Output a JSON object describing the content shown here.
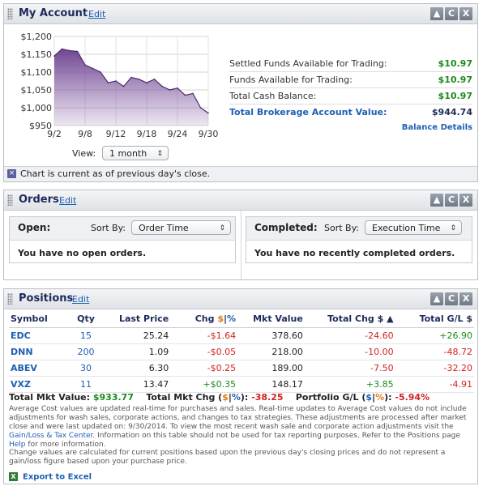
{
  "account": {
    "title": "My Account",
    "edit": "Edit",
    "controls": [
      "▲",
      "C",
      "X"
    ],
    "rows": [
      {
        "label": "Settled Funds Available for Trading:",
        "value": "$10.97"
      },
      {
        "label": "Funds Available for Trading:",
        "value": "$10.97"
      },
      {
        "label": "Total Cash Balance:",
        "value": "$10.97"
      }
    ],
    "total_label": "Total Brokerage Account Value:",
    "total_value": "$944.74",
    "balance_details": "Balance Details",
    "view_label": "View:",
    "view_value": "1 month",
    "footnote": "Chart is current as of previous day's close."
  },
  "chart_data": {
    "type": "area",
    "x": [
      "9/2",
      "9/3",
      "9/4",
      "9/5",
      "9/8",
      "9/9",
      "9/10",
      "9/11",
      "9/12",
      "9/15",
      "9/16",
      "9/17",
      "9/18",
      "9/19",
      "9/22",
      "9/23",
      "9/24",
      "9/25",
      "9/26",
      "9/29",
      "9/30"
    ],
    "values": [
      1145,
      1165,
      1160,
      1158,
      1120,
      1110,
      1100,
      1070,
      1075,
      1060,
      1085,
      1080,
      1070,
      1080,
      1060,
      1050,
      1055,
      1035,
      1040,
      1000,
      985
    ],
    "ylim": [
      950,
      1200
    ],
    "yticks": [
      "$1,200",
      "$1,150",
      "$1,100",
      "$1,050",
      "$1,000",
      "$950"
    ],
    "xticks": [
      "9/2",
      "9/8",
      "9/12",
      "9/18",
      "9/24",
      "9/30"
    ],
    "grid": true,
    "fill": "#6a3d8f"
  },
  "orders": {
    "title": "Orders",
    "edit": "Edit",
    "open_label": "Open:",
    "sort_by": "Sort By:",
    "open_sort": "Order Time",
    "open_msg": "You have no open orders.",
    "completed_label": "Completed:",
    "completed_sort": "Execution Time",
    "completed_msg": "You have no recently completed orders."
  },
  "positions": {
    "title": "Positions",
    "edit": "Edit",
    "headers": {
      "symbol": "Symbol",
      "qty": "Qty",
      "last_price": "Last Price",
      "chg": "Chg",
      "chg_dollar": "$",
      "chg_sep": "|",
      "chg_pct": "%",
      "mkt_value": "Mkt Value",
      "total_chg": "Total Chg $",
      "sort_arrow": "▲",
      "total_gl": "Total G/L $"
    },
    "rows": [
      {
        "symbol": "EDC",
        "qty": "15",
        "last": "25.24",
        "chg": "-$1.64",
        "mkt": "378.60",
        "tchg": "-24.60",
        "tgl": "+26.90",
        "chg_dir": "down",
        "tchg_dir": "down",
        "tgl_dir": "up"
      },
      {
        "symbol": "DNN",
        "qty": "200",
        "last": "1.09",
        "chg": "-$0.05",
        "mkt": "218.00",
        "tchg": "-10.00",
        "tgl": "-48.72",
        "chg_dir": "down",
        "tchg_dir": "down",
        "tgl_dir": "down"
      },
      {
        "symbol": "ABEV",
        "qty": "30",
        "last": "6.30",
        "chg": "-$0.25",
        "mkt": "189.00",
        "tchg": "-7.50",
        "tgl": "-32.20",
        "chg_dir": "down",
        "tchg_dir": "down",
        "tgl_dir": "down"
      },
      {
        "symbol": "VXZ",
        "qty": "11",
        "last": "13.47",
        "chg": "+$0.35",
        "mkt": "148.17",
        "tchg": "+3.85",
        "tgl": "-4.91",
        "chg_dir": "up",
        "tchg_dir": "up",
        "tgl_dir": "down"
      }
    ],
    "summary": {
      "total_mkt_label": "Total Mkt Value:",
      "total_mkt": "$933.77",
      "total_chg_label": "Total Mkt Chg (",
      "total_chg_dollar": "$",
      "total_chg_sep": "|",
      "total_chg_pct": "%",
      "total_chg_close": "):",
      "total_chg": "-38.25",
      "portfolio_label": "Portfolio G/L (",
      "portfolio_dollar": "$",
      "portfolio_sep": "|",
      "portfolio_pct": "%",
      "portfolio_close": "):",
      "portfolio": "-5.94%"
    },
    "note1_a": "Average Cost values are updated real-time for purchases and sales. Real-time updates to Average Cost values do not include adjustments for wash sales, corporate actions, and changes to tax strategies. These adjustments are processed after market close and were last updated on:",
    "note1_date": "9/30/2014",
    "note1_b": ". To view the most recent wash sale and corporate action adjustments visit the",
    "note1_link1": "Gain/Loss & Tax Center",
    "note1_c": ". Information on this table should not be used for tax reporting purposes. Refer to the Positions page",
    "note1_link2": "Help",
    "note1_d": "for more information.",
    "note2": "Change values are calculated for current positions based upon the previous day's closing prices and do not represent a gain/loss figure based upon your purchase price.",
    "export": "Export to Excel"
  }
}
